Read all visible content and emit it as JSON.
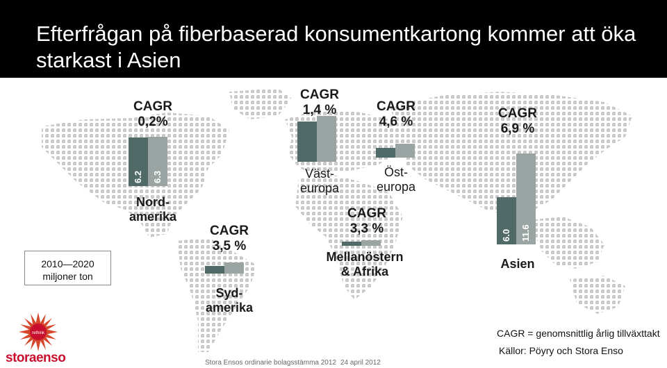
{
  "title": "Efterfrågan på fiberbaserad konsumentkartong kommer att öka starkast i Asien",
  "legend_box": {
    "line1": "2010—2020",
    "line2": "miljoner ton"
  },
  "note": "CAGR = genomsnittlig årlig tillväxttakt",
  "sources": "Källor: Pöyry och Stora Enso",
  "footer": {
    "meeting": "Stora Ensos ordinarie bolagsstämma 2012",
    "date": "24 april 2012"
  },
  "logo": {
    "wordmark": "storaenso",
    "badge": "rethink"
  },
  "colors": {
    "bar_2010": "#4f6a67",
    "bar_2020": "#9aa4a2"
  },
  "chart_data": {
    "type": "bar",
    "series": [
      {
        "name": "2010"
      },
      {
        "name": "2020"
      }
    ],
    "regions": [
      {
        "key": "nordamerika",
        "name": "Nord-\namerika",
        "cagr": "0,2%",
        "v2010": 6.2,
        "v2020": 6.3,
        "label_2010": "6.2",
        "label_2020": "6.3"
      },
      {
        "key": "sydamerika",
        "name": "Syd-\namerika",
        "cagr": "3,5 %",
        "v2010": 1.0,
        "v2020": 1.4
      },
      {
        "key": "vasteuropa",
        "name": "Väst-\neuropa",
        "cagr": "1,4 %",
        "v2010": 5.1,
        "v2020": 5.8
      },
      {
        "key": "osteuropa",
        "name": "Öst-\neuropa",
        "cagr": "4,6 %",
        "v2010": 1.2,
        "v2020": 1.8
      },
      {
        "key": "mellanostern",
        "name": "Mellanöstern\n& Afrika",
        "cagr": "3,3 %",
        "v2010": 0.5,
        "v2020": 0.7
      },
      {
        "key": "asien",
        "name": "Asien",
        "cagr": "6,9 %",
        "v2010": 6.0,
        "v2020": 11.6,
        "label_2010": "6.0",
        "label_2020": "11.6"
      }
    ]
  }
}
